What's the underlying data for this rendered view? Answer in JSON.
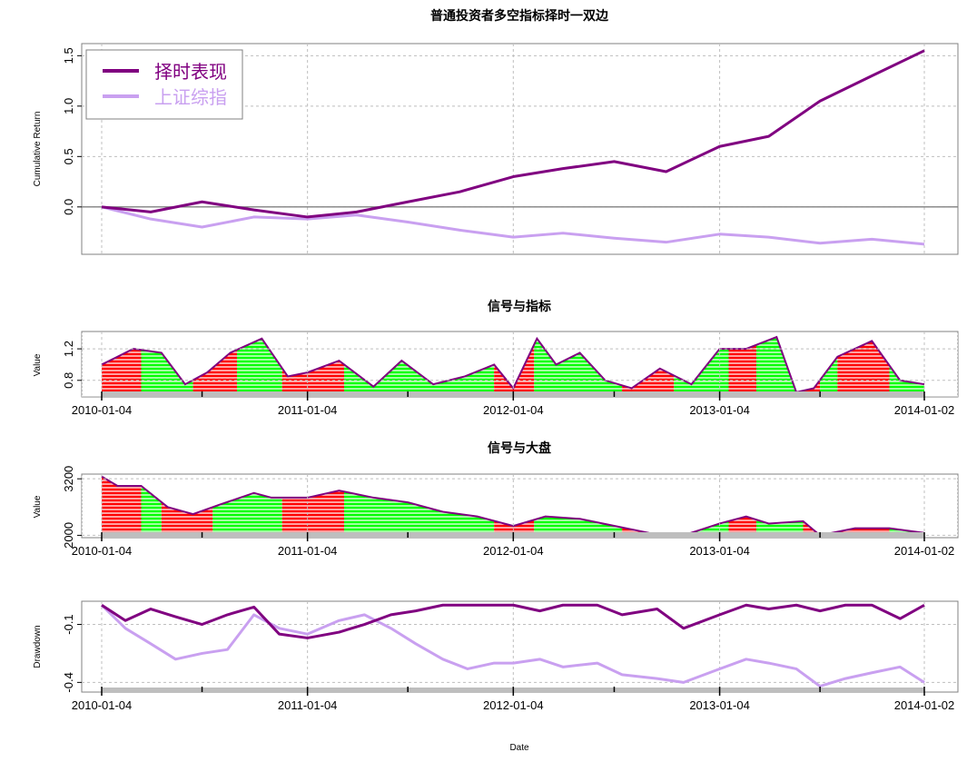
{
  "colors": {
    "strategy": "#800080",
    "index": "#C9A0F0",
    "red": "#FF0000",
    "green": "#00FF00",
    "grid": "#BFBFBF",
    "frame": "#808080",
    "zero": "#808080",
    "date_bar": "#BEBEBE"
  },
  "chart_data": [
    {
      "type": "line",
      "title": "普通投资者多空指标择时一双边",
      "xlabel": "",
      "ylabel": "Cumulative Return",
      "ylim": [
        -0.47,
        1.62
      ],
      "yticks": [
        "0.0",
        "0.5",
        "1.0",
        "1.5"
      ],
      "grid": true,
      "legend": "top-left",
      "x": [
        "2010-01-04",
        "2010-04-01",
        "2010-07-01",
        "2010-10-01",
        "2011-01-04",
        "2011-04-01",
        "2011-07-01",
        "2011-10-01",
        "2012-01-04",
        "2012-04-01",
        "2012-07-01",
        "2012-10-01",
        "2013-01-04",
        "2013-04-01",
        "2013-07-01",
        "2013-10-01",
        "2014-01-02"
      ],
      "series": [
        {
          "name": "择时表现",
          "values": [
            0.0,
            -0.05,
            0.05,
            -0.03,
            -0.1,
            -0.05,
            0.05,
            0.15,
            0.3,
            0.38,
            0.45,
            0.35,
            0.6,
            0.7,
            1.05,
            1.3,
            1.55
          ]
        },
        {
          "name": "上证综指",
          "values": [
            0.0,
            -0.12,
            -0.2,
            -0.1,
            -0.12,
            -0.08,
            -0.15,
            -0.23,
            -0.3,
            -0.26,
            -0.31,
            -0.35,
            -0.27,
            -0.3,
            -0.36,
            -0.32,
            -0.37
          ]
        }
      ]
    },
    {
      "type": "area",
      "title": "信号与指标",
      "xlabel": "",
      "ylabel": "Value",
      "ylim": [
        0.59,
        1.42
      ],
      "yticks": [
        "0.8",
        "1.2"
      ],
      "grid": true,
      "x_tick_labels": [
        "2010-01-04",
        "2011-01-04",
        "2012-01-04",
        "2013-01-04",
        "2014-01-02"
      ],
      "x": [
        "2010-01-04",
        "2010-03-01",
        "2010-04-20",
        "2010-06-01",
        "2010-07-10",
        "2010-08-20",
        "2010-10-15",
        "2010-11-30",
        "2011-01-04",
        "2011-03-01",
        "2011-05-01",
        "2011-06-20",
        "2011-08-15",
        "2011-10-10",
        "2011-12-01",
        "2012-01-04",
        "2012-02-15",
        "2012-03-20",
        "2012-05-01",
        "2012-06-15",
        "2012-08-01",
        "2012-09-20",
        "2012-11-15",
        "2013-01-04",
        "2013-02-20",
        "2013-04-15",
        "2013-05-20",
        "2013-06-20",
        "2013-08-01",
        "2013-10-01",
        "2013-11-20",
        "2014-01-02"
      ],
      "values": [
        1.0,
        1.2,
        1.15,
        0.75,
        0.9,
        1.15,
        1.33,
        0.85,
        0.9,
        1.05,
        0.72,
        1.05,
        0.75,
        0.85,
        1.0,
        0.7,
        1.33,
        1.0,
        1.15,
        0.8,
        0.7,
        0.95,
        0.75,
        1.2,
        1.2,
        1.35,
        0.65,
        0.7,
        1.1,
        1.3,
        0.8,
        0.75
      ],
      "signal_segments": [
        {
          "start": "2010-01-04",
          "end": "2010-03-15",
          "signal": "red"
        },
        {
          "start": "2010-03-15",
          "end": "2010-06-15",
          "signal": "green"
        },
        {
          "start": "2010-06-15",
          "end": "2010-09-01",
          "signal": "red"
        },
        {
          "start": "2010-09-01",
          "end": "2010-11-20",
          "signal": "green"
        },
        {
          "start": "2010-11-20",
          "end": "2011-03-10",
          "signal": "red"
        },
        {
          "start": "2011-03-10",
          "end": "2011-12-01",
          "signal": "green"
        },
        {
          "start": "2011-12-01",
          "end": "2012-02-10",
          "signal": "red"
        },
        {
          "start": "2012-02-10",
          "end": "2012-07-15",
          "signal": "green"
        },
        {
          "start": "2012-07-15",
          "end": "2012-10-15",
          "signal": "red"
        },
        {
          "start": "2012-10-15",
          "end": "2013-01-20",
          "signal": "green"
        },
        {
          "start": "2013-01-20",
          "end": "2013-03-10",
          "signal": "red"
        },
        {
          "start": "2013-03-10",
          "end": "2013-06-01",
          "signal": "green"
        },
        {
          "start": "2013-06-01",
          "end": "2013-07-01",
          "signal": "red"
        },
        {
          "start": "2013-07-01",
          "end": "2013-08-01",
          "signal": "green"
        },
        {
          "start": "2013-08-01",
          "end": "2013-11-01",
          "signal": "red"
        },
        {
          "start": "2013-11-01",
          "end": "2014-01-02",
          "signal": "green"
        }
      ]
    },
    {
      "type": "area",
      "title": "信号与大盘",
      "xlabel": "",
      "ylabel": "Value",
      "ylim": [
        1950,
        3300
      ],
      "yticks": [
        "2000",
        "3200"
      ],
      "grid": true,
      "x_tick_labels": [
        "2010-01-04",
        "2011-01-04",
        "2012-01-04",
        "2013-01-04",
        "2014-01-02"
      ],
      "x": [
        "2010-01-04",
        "2010-02-01",
        "2010-03-15",
        "2010-05-01",
        "2010-06-15",
        "2010-08-01",
        "2010-10-01",
        "2010-11-01",
        "2011-01-04",
        "2011-03-01",
        "2011-05-01",
        "2011-07-01",
        "2011-09-01",
        "2011-11-01",
        "2012-01-04",
        "2012-03-01",
        "2012-05-01",
        "2012-07-01",
        "2012-09-01",
        "2012-11-01",
        "2013-01-04",
        "2013-02-20",
        "2013-04-01",
        "2013-06-01",
        "2013-07-01",
        "2013-09-01",
        "2013-11-01",
        "2014-01-02"
      ],
      "values": [
        3250,
        3050,
        3050,
        2600,
        2450,
        2650,
        2900,
        2800,
        2800,
        2950,
        2800,
        2700,
        2500,
        2400,
        2200,
        2400,
        2350,
        2200,
        2050,
        2000,
        2250,
        2400,
        2250,
        2300,
        2000,
        2150,
        2150,
        2050
      ],
      "signal_segments": [
        {
          "start": "2010-01-04",
          "end": "2010-03-15",
          "signal": "red"
        },
        {
          "start": "2010-03-15",
          "end": "2010-04-20",
          "signal": "green"
        },
        {
          "start": "2010-04-20",
          "end": "2010-07-20",
          "signal": "red"
        },
        {
          "start": "2010-07-20",
          "end": "2010-11-20",
          "signal": "green"
        },
        {
          "start": "2010-11-20",
          "end": "2011-03-10",
          "signal": "red"
        },
        {
          "start": "2011-03-10",
          "end": "2011-12-01",
          "signal": "green"
        },
        {
          "start": "2011-12-01",
          "end": "2012-02-10",
          "signal": "red"
        },
        {
          "start": "2012-02-10",
          "end": "2012-07-15",
          "signal": "green"
        },
        {
          "start": "2012-07-15",
          "end": "2012-10-15",
          "signal": "red"
        },
        {
          "start": "2012-10-15",
          "end": "2013-01-20",
          "signal": "green"
        },
        {
          "start": "2013-01-20",
          "end": "2013-03-10",
          "signal": "red"
        },
        {
          "start": "2013-03-10",
          "end": "2013-06-01",
          "signal": "green"
        },
        {
          "start": "2013-06-01",
          "end": "2013-07-01",
          "signal": "red"
        },
        {
          "start": "2013-07-01",
          "end": "2013-08-01",
          "signal": "green"
        },
        {
          "start": "2013-08-01",
          "end": "2013-11-01",
          "signal": "red"
        },
        {
          "start": "2013-11-01",
          "end": "2014-01-02",
          "signal": "green"
        }
      ]
    },
    {
      "type": "line",
      "title": "",
      "xlabel": "Date",
      "ylabel": "Drawdown",
      "ylim": [
        -0.45,
        0.02
      ],
      "yticks": [
        "-0.1",
        "-0.4"
      ],
      "grid": true,
      "x_tick_labels": [
        "2010-01-04",
        "2011-01-04",
        "2012-01-04",
        "2013-01-04",
        "2014-01-02"
      ],
      "x": [
        "2010-01-04",
        "2010-02-15",
        "2010-04-01",
        "2010-05-15",
        "2010-07-01",
        "2010-08-15",
        "2010-10-01",
        "2010-11-15",
        "2011-01-04",
        "2011-03-01",
        "2011-04-15",
        "2011-06-01",
        "2011-07-15",
        "2011-09-01",
        "2011-10-15",
        "2011-12-01",
        "2012-01-04",
        "2012-02-20",
        "2012-04-01",
        "2012-06-01",
        "2012-07-15",
        "2012-09-15",
        "2012-11-01",
        "2013-01-04",
        "2013-02-20",
        "2013-04-01",
        "2013-05-20",
        "2013-07-01",
        "2013-08-15",
        "2013-10-01",
        "2013-11-20",
        "2014-01-02"
      ],
      "series": [
        {
          "name": "择时表现",
          "values": [
            0.0,
            -0.08,
            -0.02,
            -0.06,
            -0.1,
            -0.05,
            -0.01,
            -0.15,
            -0.17,
            -0.14,
            -0.1,
            -0.05,
            -0.03,
            0.0,
            0.0,
            0.0,
            0.0,
            -0.03,
            0.0,
            0.0,
            -0.05,
            -0.02,
            -0.12,
            -0.05,
            0.0,
            -0.02,
            0.0,
            -0.03,
            0.0,
            0.0,
            -0.07,
            0.0
          ]
        },
        {
          "name": "上证综指",
          "values": [
            0.0,
            -0.12,
            -0.2,
            -0.28,
            -0.25,
            -0.23,
            -0.05,
            -0.12,
            -0.15,
            -0.08,
            -0.05,
            -0.12,
            -0.2,
            -0.28,
            -0.33,
            -0.3,
            -0.3,
            -0.28,
            -0.32,
            -0.3,
            -0.36,
            -0.38,
            -0.4,
            -0.33,
            -0.28,
            -0.3,
            -0.33,
            -0.42,
            -0.38,
            -0.35,
            -0.32,
            -0.4
          ]
        }
      ]
    }
  ]
}
